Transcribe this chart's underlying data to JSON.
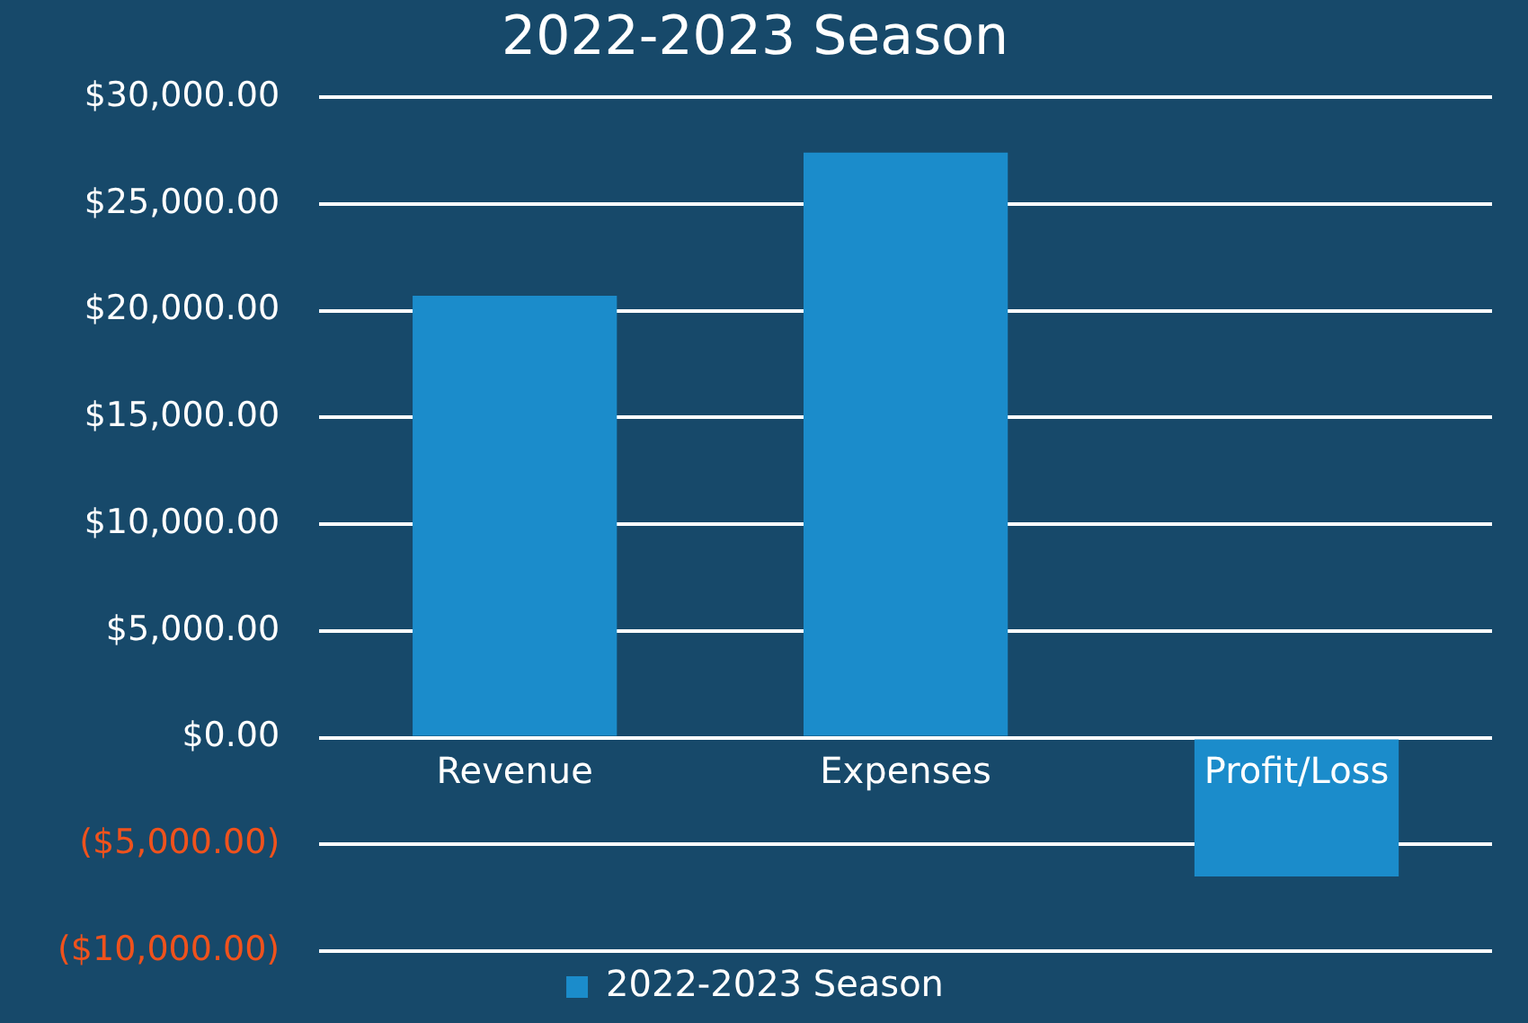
{
  "chart_data": {
    "type": "bar",
    "title": "2022-2023 Season",
    "categories": [
      "Revenue",
      "Expenses",
      "Profit/Loss"
    ],
    "series": [
      {
        "name": "2022-2023 Season",
        "color": "#1b8ccb",
        "values": [
          20700,
          27400,
          -6500
        ]
      }
    ],
    "ylim": [
      -10000,
      30000
    ],
    "yticks": [
      {
        "value": -10000,
        "label": "($10,000.00)"
      },
      {
        "value": -5000,
        "label": "($5,000.00)"
      },
      {
        "value": 0,
        "label": "$0.00"
      },
      {
        "value": 5000,
        "label": "$5,000.00"
      },
      {
        "value": 10000,
        "label": "$10,000.00"
      },
      {
        "value": 15000,
        "label": "$15,000.00"
      },
      {
        "value": 20000,
        "label": "$20,000.00"
      },
      {
        "value": 25000,
        "label": "$25,000.00"
      },
      {
        "value": 30000,
        "label": "$30,000.00"
      }
    ],
    "grid": "y",
    "legend": "bottom"
  }
}
